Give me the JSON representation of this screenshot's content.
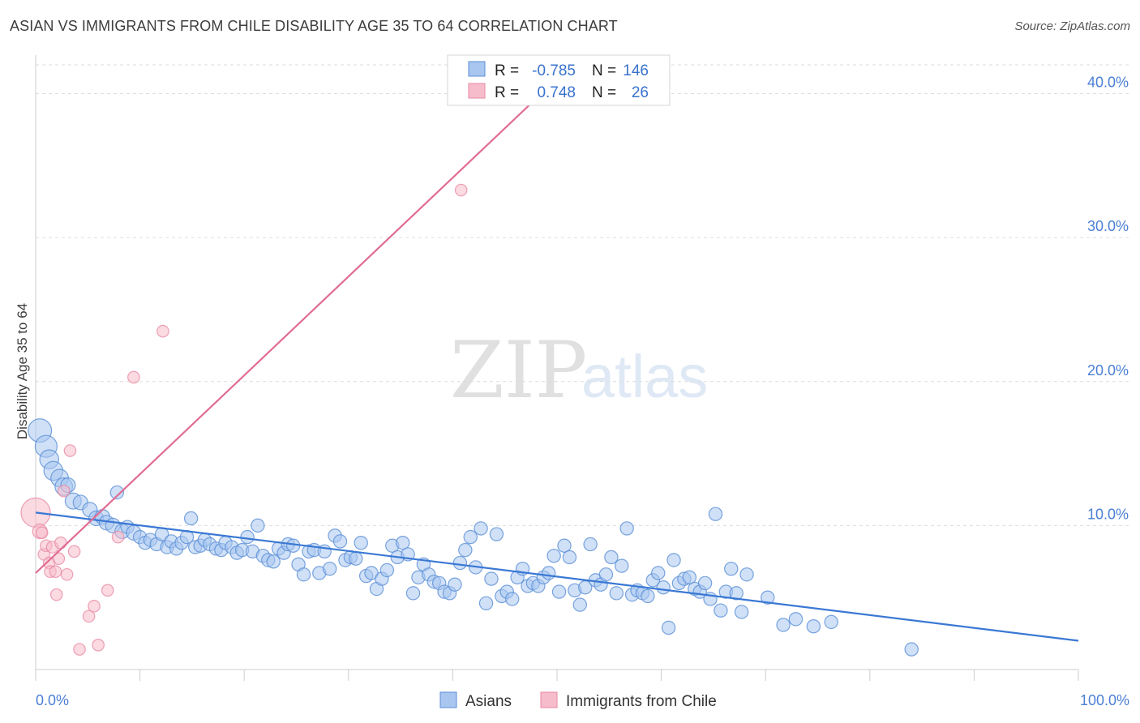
{
  "title": "ASIAN VS IMMIGRANTS FROM CHILE DISABILITY AGE 35 TO 64 CORRELATION CHART",
  "source": "Source: ZipAtlas.com",
  "watermark": {
    "zip": "ZIP",
    "atlas": "atlas"
  },
  "legend": {
    "r_label": "R =",
    "n_label": "N =",
    "rows": [
      {
        "r": "-0.785",
        "n": "146",
        "color": "#a8c6f0",
        "edge": "#5b8fd6"
      },
      {
        "r": "0.748",
        "n": "26",
        "color": "#f7bccb",
        "edge": "#e88aa5"
      }
    ]
  },
  "bottom_legend": [
    {
      "label": "Asians",
      "color": "#a8c6f0",
      "edge": "#5b8fd6"
    },
    {
      "label": "Immigrants from Chile",
      "color": "#f7bccb",
      "edge": "#e88aa5"
    }
  ],
  "colors": {
    "asian_line": "#3a78d4",
    "chile_line": "#e06b93",
    "asian_fill": "#a8c6f0",
    "chile_fill": "#f7bccb",
    "grid": "#dddddd"
  },
  "chart_data": {
    "type": "scatter",
    "title": "ASIAN VS IMMIGRANTS FROM CHILE DISABILITY AGE 35 TO 64 CORRELATION CHART",
    "xlabel": "",
    "ylabel": "Disability Age 35 to 64",
    "xlim": [
      0,
      100
    ],
    "ylim": [
      0,
      42
    ],
    "x_tick_labels": [
      "0.0%",
      "100.0%"
    ],
    "y_ticks": [
      10,
      20,
      30,
      40
    ],
    "y_tick_labels": [
      "10.0%",
      "20.0%",
      "30.0%",
      "40.0%"
    ],
    "grid": true,
    "legend_position": "top-center",
    "series": [
      {
        "name": "Asians",
        "r": -0.785,
        "n": 146,
        "trend": {
          "x": [
            0,
            100
          ],
          "y": [
            10.9,
            2.0
          ]
        },
        "points": [
          [
            0.4,
            16.6,
            1.6
          ],
          [
            1.0,
            15.5,
            1.5
          ],
          [
            1.3,
            14.6,
            1.3
          ],
          [
            1.7,
            13.8,
            1.3
          ],
          [
            2.3,
            13.3,
            1.2
          ],
          [
            2.7,
            12.7,
            1.2
          ],
          [
            3.1,
            12.8,
            1.0
          ],
          [
            3.6,
            11.7,
            1.1
          ],
          [
            4.3,
            11.6,
            1.0
          ],
          [
            5.2,
            11.1,
            1.0
          ],
          [
            5.8,
            10.5,
            1.0
          ],
          [
            6.4,
            10.6,
            1.0
          ],
          [
            6.8,
            10.2,
            1.0
          ],
          [
            7.4,
            10.0,
            1.0
          ],
          [
            7.8,
            12.3,
            0.9
          ],
          [
            8.3,
            9.6,
            1.0
          ],
          [
            8.8,
            9.9,
            0.9
          ],
          [
            9.4,
            9.5,
            1.0
          ],
          [
            10.0,
            9.2,
            0.9
          ],
          [
            10.5,
            8.8,
            0.9
          ],
          [
            11.0,
            9.0,
            0.9
          ],
          [
            11.6,
            8.7,
            0.9
          ],
          [
            12.1,
            9.4,
            0.9
          ],
          [
            12.6,
            8.5,
            0.9
          ],
          [
            13.0,
            8.9,
            0.9
          ],
          [
            13.5,
            8.4,
            0.9
          ],
          [
            14.0,
            8.8,
            0.9
          ],
          [
            14.5,
            9.2,
            0.9
          ],
          [
            14.9,
            10.5,
            0.9
          ],
          [
            15.3,
            8.5,
            0.9
          ],
          [
            15.8,
            8.6,
            0.9
          ],
          [
            16.2,
            9.0,
            0.9
          ],
          [
            16.7,
            8.7,
            0.9
          ],
          [
            17.3,
            8.4,
            0.9
          ],
          [
            17.8,
            8.3,
            0.9
          ],
          [
            18.2,
            8.8,
            0.9
          ],
          [
            18.8,
            8.5,
            0.9
          ],
          [
            19.3,
            8.1,
            0.9
          ],
          [
            19.8,
            8.3,
            0.9
          ],
          [
            20.3,
            9.2,
            0.9
          ],
          [
            20.8,
            8.2,
            0.9
          ],
          [
            21.3,
            10.0,
            0.9
          ],
          [
            21.8,
            7.9,
            0.9
          ],
          [
            22.3,
            7.6,
            0.9
          ],
          [
            22.8,
            7.5,
            0.9
          ],
          [
            23.3,
            8.4,
            0.9
          ],
          [
            23.8,
            8.1,
            0.9
          ],
          [
            24.2,
            8.7,
            0.9
          ],
          [
            24.7,
            8.6,
            0.9
          ],
          [
            25.2,
            7.3,
            0.9
          ],
          [
            25.7,
            6.6,
            0.9
          ],
          [
            26.2,
            8.2,
            0.9
          ],
          [
            26.7,
            8.3,
            0.9
          ],
          [
            27.2,
            6.7,
            0.9
          ],
          [
            27.7,
            8.2,
            0.9
          ],
          [
            28.2,
            7.0,
            0.9
          ],
          [
            28.7,
            9.3,
            0.9
          ],
          [
            29.2,
            8.9,
            0.9
          ],
          [
            29.7,
            7.6,
            0.9
          ],
          [
            30.2,
            7.8,
            0.9
          ],
          [
            30.7,
            7.7,
            0.9
          ],
          [
            31.2,
            8.8,
            0.9
          ],
          [
            31.7,
            6.5,
            0.9
          ],
          [
            32.2,
            6.7,
            0.9
          ],
          [
            32.7,
            5.6,
            0.9
          ],
          [
            33.2,
            6.3,
            0.9
          ],
          [
            33.7,
            6.9,
            0.9
          ],
          [
            34.2,
            8.6,
            0.9
          ],
          [
            34.7,
            7.8,
            0.9
          ],
          [
            35.2,
            8.8,
            0.9
          ],
          [
            35.7,
            8.0,
            0.9
          ],
          [
            36.2,
            5.3,
            0.9
          ],
          [
            36.7,
            6.4,
            0.9
          ],
          [
            37.2,
            7.3,
            0.9
          ],
          [
            37.7,
            6.6,
            0.9
          ],
          [
            38.2,
            6.1,
            0.9
          ],
          [
            38.7,
            6.0,
            0.9
          ],
          [
            39.2,
            5.4,
            0.9
          ],
          [
            39.7,
            5.3,
            0.9
          ],
          [
            40.2,
            5.9,
            0.9
          ],
          [
            40.7,
            7.4,
            0.9
          ],
          [
            41.2,
            8.3,
            0.9
          ],
          [
            41.7,
            9.2,
            0.9
          ],
          [
            42.2,
            7.1,
            0.9
          ],
          [
            42.7,
            9.8,
            0.9
          ],
          [
            43.2,
            4.6,
            0.9
          ],
          [
            43.7,
            6.3,
            0.9
          ],
          [
            44.2,
            9.4,
            0.9
          ],
          [
            44.7,
            5.1,
            0.9
          ],
          [
            45.2,
            5.4,
            0.9
          ],
          [
            45.7,
            4.9,
            0.9
          ],
          [
            46.2,
            6.4,
            0.9
          ],
          [
            46.7,
            7.0,
            0.9
          ],
          [
            47.2,
            5.8,
            0.9
          ],
          [
            47.7,
            6.0,
            0.9
          ],
          [
            48.2,
            5.8,
            0.9
          ],
          [
            48.7,
            6.4,
            0.9
          ],
          [
            49.2,
            6.7,
            0.9
          ],
          [
            49.7,
            7.9,
            0.9
          ],
          [
            50.2,
            5.4,
            0.9
          ],
          [
            50.7,
            8.6,
            0.9
          ],
          [
            51.2,
            7.8,
            0.9
          ],
          [
            51.7,
            5.5,
            0.9
          ],
          [
            52.2,
            4.5,
            0.9
          ],
          [
            52.7,
            5.7,
            0.9
          ],
          [
            53.2,
            8.7,
            0.9
          ],
          [
            53.7,
            6.2,
            0.9
          ],
          [
            54.2,
            5.9,
            0.9
          ],
          [
            54.7,
            6.6,
            0.9
          ],
          [
            55.2,
            7.8,
            0.9
          ],
          [
            55.7,
            5.3,
            0.9
          ],
          [
            56.2,
            7.2,
            0.9
          ],
          [
            56.7,
            9.8,
            0.9
          ],
          [
            57.2,
            5.2,
            0.9
          ],
          [
            57.7,
            5.5,
            0.9
          ],
          [
            58.2,
            5.3,
            0.9
          ],
          [
            58.7,
            5.1,
            0.9
          ],
          [
            59.2,
            6.2,
            0.9
          ],
          [
            59.7,
            6.7,
            0.9
          ],
          [
            60.2,
            5.7,
            0.9
          ],
          [
            60.7,
            2.9,
            0.9
          ],
          [
            61.2,
            7.6,
            0.9
          ],
          [
            61.7,
            6.0,
            0.9
          ],
          [
            62.2,
            6.3,
            0.9
          ],
          [
            62.7,
            6.4,
            0.9
          ],
          [
            63.2,
            5.6,
            0.9
          ],
          [
            63.7,
            5.4,
            0.9
          ],
          [
            64.2,
            6.0,
            0.9
          ],
          [
            64.7,
            4.9,
            0.9
          ],
          [
            65.2,
            10.8,
            0.9
          ],
          [
            65.7,
            4.1,
            0.9
          ],
          [
            66.2,
            5.4,
            0.9
          ],
          [
            66.7,
            7.0,
            0.9
          ],
          [
            67.2,
            5.3,
            0.9
          ],
          [
            67.7,
            4.0,
            0.9
          ],
          [
            68.2,
            6.6,
            0.9
          ],
          [
            70.2,
            5.0,
            0.9
          ],
          [
            71.7,
            3.1,
            0.9
          ],
          [
            72.9,
            3.5,
            0.9
          ],
          [
            74.6,
            3.0,
            0.9
          ],
          [
            76.3,
            3.3,
            0.9
          ],
          [
            84.0,
            1.4,
            0.9
          ]
        ]
      },
      {
        "name": "Immigrants from Chile",
        "r": 0.748,
        "n": 26,
        "trend": {
          "x": [
            0,
            48.5
          ],
          "y": [
            6.7,
            40.0
          ]
        },
        "points": [
          [
            0.0,
            10.9,
            2.0
          ],
          [
            0.4,
            9.6,
            1.0
          ],
          [
            0.6,
            9.5,
            0.8
          ],
          [
            0.8,
            8.0,
            0.8
          ],
          [
            1.0,
            8.6,
            0.8
          ],
          [
            1.3,
            7.4,
            0.8
          ],
          [
            1.4,
            6.8,
            0.8
          ],
          [
            1.6,
            8.5,
            0.8
          ],
          [
            1.9,
            6.8,
            0.8
          ],
          [
            2.0,
            5.2,
            0.8
          ],
          [
            2.2,
            7.7,
            0.8
          ],
          [
            2.4,
            8.8,
            0.8
          ],
          [
            2.7,
            12.4,
            0.8
          ],
          [
            3.0,
            6.6,
            0.8
          ],
          [
            3.3,
            15.2,
            0.8
          ],
          [
            3.7,
            8.2,
            0.8
          ],
          [
            4.2,
            1.4,
            0.8
          ],
          [
            5.1,
            3.7,
            0.8
          ],
          [
            5.6,
            4.4,
            0.8
          ],
          [
            6.0,
            1.7,
            0.8
          ],
          [
            6.9,
            5.5,
            0.8
          ],
          [
            7.9,
            9.2,
            0.8
          ],
          [
            9.4,
            20.3,
            0.8
          ],
          [
            12.2,
            23.5,
            0.8
          ],
          [
            40.8,
            33.3,
            0.8
          ]
        ]
      }
    ]
  }
}
